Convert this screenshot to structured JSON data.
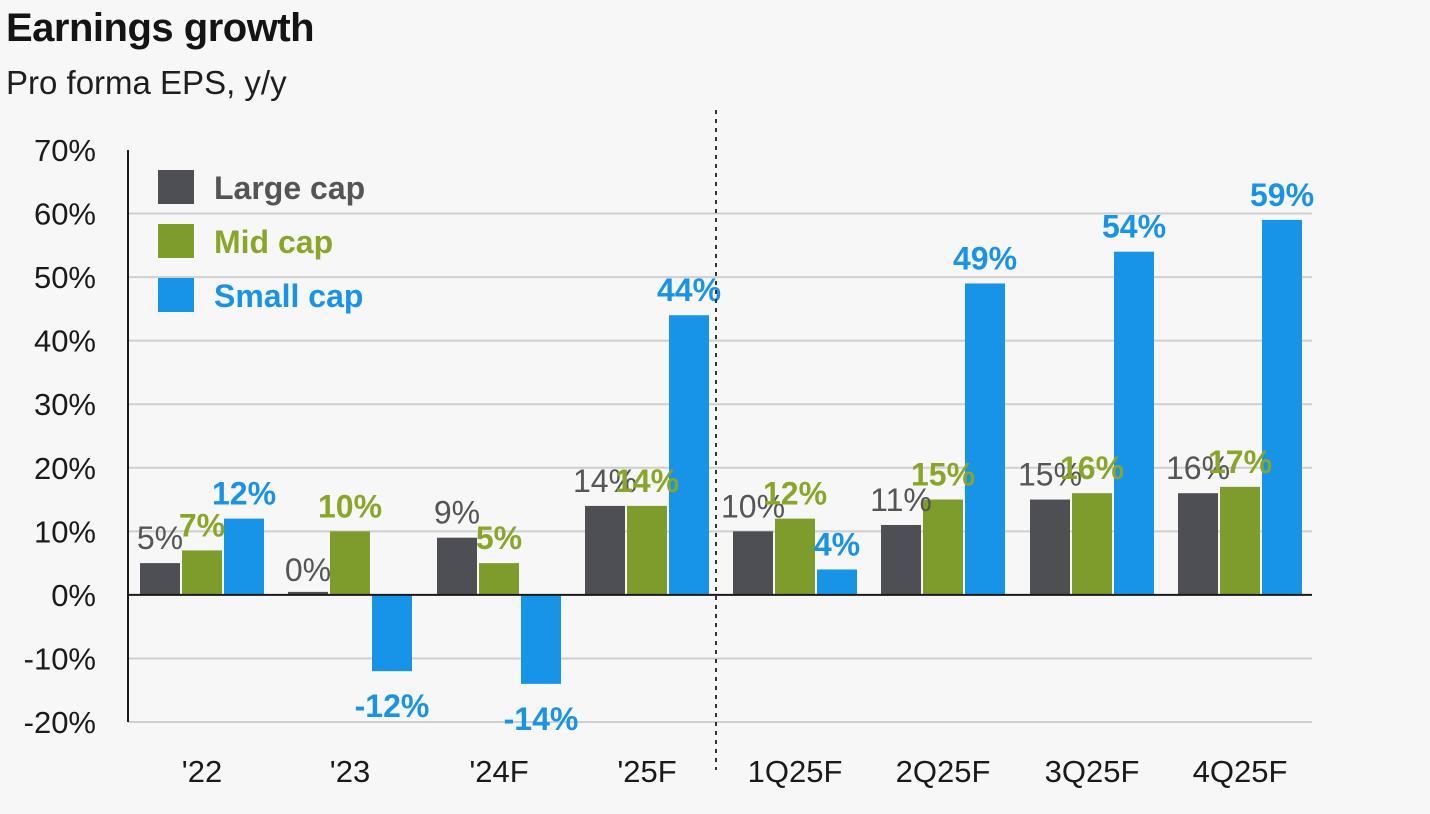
{
  "header": {
    "title": "Earnings growth",
    "subtitle": "Pro forma EPS, y/y"
  },
  "colors": {
    "large": "#4d4f54",
    "mid": "#7d9c2b",
    "small": "#1793e8",
    "large_label": "#555555",
    "mid_label": "#8aa62a",
    "small_label": "#1a93e6",
    "grid": "#cfcfcf",
    "axis": "#1a1a1a"
  },
  "chart_data": {
    "type": "bar",
    "title": "Earnings growth",
    "subtitle": "Pro forma EPS, y/y",
    "xlabel": "",
    "ylabel": "",
    "ylim": [
      -20,
      70
    ],
    "yticks": [
      -20,
      -10,
      0,
      10,
      20,
      30,
      40,
      50,
      60,
      70
    ],
    "ytick_labels": [
      "-20%",
      "-10%",
      "0%",
      "10%",
      "20%",
      "30%",
      "40%",
      "50%",
      "60%",
      "70%"
    ],
    "grid": true,
    "legend": "top-left",
    "divider_after_category": 3,
    "categories": [
      "'22",
      "'23",
      "'24F",
      "'25F",
      "1Q25F",
      "2Q25F",
      "3Q25F",
      "4Q25F"
    ],
    "series": [
      {
        "name": "Large cap",
        "values": [
          5,
          0,
          9,
          14,
          10,
          11,
          15,
          16
        ],
        "labels": [
          "5%",
          "0%",
          "9%",
          "14%",
          "10%",
          "11%",
          "15%",
          "16%"
        ]
      },
      {
        "name": "Mid cap",
        "values": [
          7,
          10,
          5,
          14,
          12,
          15,
          16,
          17
        ],
        "labels": [
          "7%",
          "10%",
          "5%",
          "14%",
          "12%",
          "15%",
          "16%",
          "17%"
        ]
      },
      {
        "name": "Small cap",
        "values": [
          12,
          -12,
          -14,
          44,
          4,
          49,
          54,
          59
        ],
        "labels": [
          "12%",
          "-12%",
          "-14%",
          "44%",
          "4%",
          "49%",
          "54%",
          "59%"
        ]
      }
    ]
  }
}
